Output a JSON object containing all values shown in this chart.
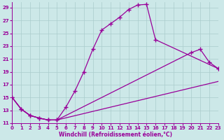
{
  "bg_color": "#cce8e8",
  "line_color": "#990099",
  "grid_color": "#aacccc",
  "xlim": [
    0,
    23
  ],
  "ylim": [
    11,
    29.8
  ],
  "xticks": [
    0,
    1,
    2,
    3,
    4,
    5,
    6,
    7,
    8,
    9,
    10,
    11,
    12,
    13,
    14,
    15,
    16,
    17,
    18,
    19,
    20,
    21,
    22,
    23
  ],
  "yticks": [
    11,
    13,
    15,
    17,
    19,
    21,
    23,
    25,
    27,
    29
  ],
  "xlabel": "Windchill (Refroidissement éolien,°C)",
  "line1_x": [
    0,
    1,
    2,
    3,
    4,
    5,
    6,
    7,
    8,
    9,
    10,
    11,
    12,
    13,
    14,
    15,
    16,
    23
  ],
  "line1_y": [
    15,
    13.2,
    12.2,
    11.8,
    11.5,
    11.5,
    13.5,
    16.0,
    19.0,
    22.5,
    25.5,
    26.5,
    27.5,
    28.7,
    29.4,
    29.5,
    24.0,
    19.5
  ],
  "line2_x": [
    0,
    1,
    2,
    3,
    4,
    5,
    20,
    21,
    22,
    23
  ],
  "line2_y": [
    15,
    13.2,
    12.2,
    11.8,
    11.5,
    11.5,
    22.0,
    22.5,
    20.5,
    19.5
  ],
  "line3_x": [
    0,
    1,
    2,
    3,
    4,
    5,
    23
  ],
  "line3_y": [
    15,
    13.2,
    12.2,
    11.8,
    11.5,
    11.5,
    17.5
  ]
}
